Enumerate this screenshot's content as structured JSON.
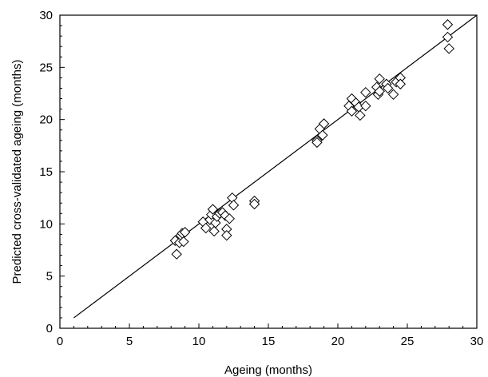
{
  "chart_data": {
    "type": "scatter",
    "title": "",
    "xlabel": "Ageing (months)",
    "ylabel": "Predicted cross-validated ageing (months)",
    "xlim": [
      0,
      30
    ],
    "ylim": [
      0,
      30
    ],
    "xticks": [
      "0",
      "5",
      "10",
      "15",
      "20",
      "25",
      "30"
    ],
    "yticks": [
      "0",
      "5",
      "10",
      "15",
      "20",
      "25",
      "30"
    ],
    "grid": false,
    "marker": "open-diamond",
    "fit_line": {
      "x": [
        1,
        30
      ],
      "y": [
        1,
        30
      ]
    },
    "points": [
      [
        8.4,
        7.1
      ],
      [
        8.3,
        8.4
      ],
      [
        8.6,
        8.2
      ],
      [
        8.7,
        8.9
      ],
      [
        8.8,
        9.1
      ],
      [
        8.9,
        8.3
      ],
      [
        9.0,
        9.2
      ],
      [
        10.3,
        10.2
      ],
      [
        10.5,
        9.6
      ],
      [
        10.8,
        10.4
      ],
      [
        10.9,
        10.9
      ],
      [
        11.0,
        11.4
      ],
      [
        11.1,
        9.3
      ],
      [
        11.2,
        10.1
      ],
      [
        11.3,
        10.7
      ],
      [
        11.5,
        11.0
      ],
      [
        11.7,
        11.1
      ],
      [
        11.9,
        10.8
      ],
      [
        12.0,
        9.5
      ],
      [
        12.0,
        8.9
      ],
      [
        12.2,
        10.5
      ],
      [
        12.4,
        12.5
      ],
      [
        12.5,
        11.8
      ],
      [
        14.0,
        12.2
      ],
      [
        14.0,
        11.9
      ],
      [
        18.5,
        18.0
      ],
      [
        18.5,
        17.8
      ],
      [
        18.7,
        19.1
      ],
      [
        18.9,
        18.5
      ],
      [
        19.0,
        19.6
      ],
      [
        20.8,
        21.3
      ],
      [
        21.0,
        22.0
      ],
      [
        21.0,
        20.8
      ],
      [
        21.3,
        21.6
      ],
      [
        21.5,
        21.2
      ],
      [
        21.6,
        20.4
      ],
      [
        22.0,
        22.6
      ],
      [
        22.0,
        21.3
      ],
      [
        22.8,
        23.1
      ],
      [
        22.9,
        22.4
      ],
      [
        23.0,
        23.9
      ],
      [
        23.0,
        22.7
      ],
      [
        23.5,
        23.4
      ],
      [
        23.6,
        23.0
      ],
      [
        24.0,
        22.4
      ],
      [
        24.2,
        23.6
      ],
      [
        24.5,
        24.0
      ],
      [
        24.5,
        23.4
      ],
      [
        27.9,
        29.1
      ],
      [
        27.9,
        27.9
      ],
      [
        28.0,
        26.8
      ]
    ]
  }
}
